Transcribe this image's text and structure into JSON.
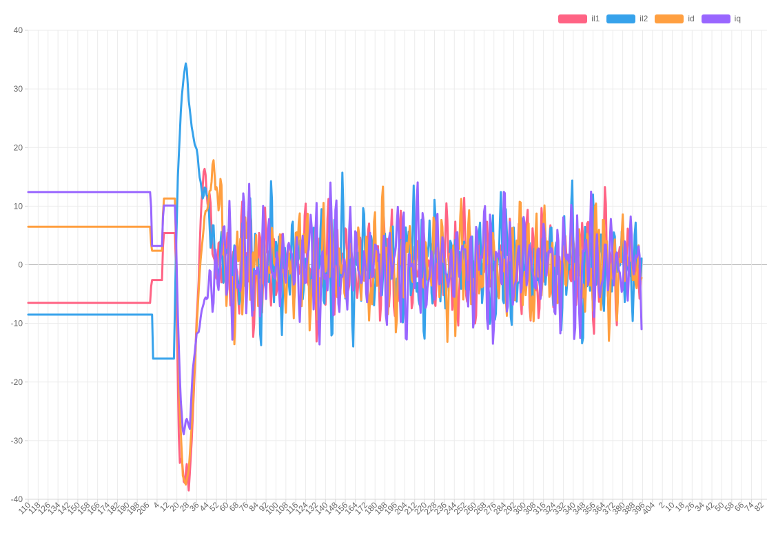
{
  "page": {
    "background": "#ffffff"
  },
  "chart_data": {
    "type": "line",
    "title": "",
    "legend_position": "top-right",
    "grid": true,
    "ylim": [
      -40,
      40
    ],
    "y_ticks": [
      40,
      30,
      20,
      10,
      0,
      -10,
      -20,
      -30,
      -40
    ],
    "x_tick_labels": [
      110,
      118,
      126,
      134,
      142,
      150,
      158,
      166,
      174,
      182,
      190,
      198,
      206,
      4,
      12,
      20,
      28,
      36,
      44,
      52,
      60,
      68,
      76,
      84,
      92,
      100,
      108,
      116,
      124,
      132,
      140,
      148,
      156,
      164,
      172,
      180,
      188,
      196,
      204,
      212,
      220,
      228,
      236,
      244,
      252,
      260,
      268,
      276,
      284,
      292,
      300,
      308,
      316,
      324,
      332,
      340,
      348,
      356,
      364,
      372,
      380,
      388,
      396,
      404,
      2,
      10,
      18,
      26,
      34,
      42,
      50,
      58,
      66,
      74,
      82
    ],
    "data_end_label_index": 62,
    "colors": {
      "grid": "#ebebeb",
      "zero_line": "#a9a9a9",
      "axis_line": "#d6d6d6",
      "tick_text": "#666666",
      "background": "#ffffff"
    },
    "series": [
      {
        "name": "il1",
        "color": "#FF6384",
        "initial_value": -6.5,
        "transient_min": -38.5,
        "keyframes": [
          [
            0,
            -6.5
          ],
          [
            12.35,
            -6.5
          ],
          [
            12.42,
            -2.6
          ],
          [
            13.55,
            -2.6
          ],
          [
            13.62,
            5.4
          ],
          [
            14.85,
            5.4
          ],
          [
            15.05,
            -15
          ],
          [
            15.25,
            -34
          ],
          [
            15.5,
            -33
          ],
          [
            15.75,
            -38
          ],
          [
            16.0,
            -34
          ],
          [
            16.2,
            -38.5
          ],
          [
            16.5,
            -30
          ],
          [
            16.9,
            -14
          ],
          [
            17.3,
            4
          ],
          [
            17.7,
            14.5
          ],
          [
            18.1,
            13
          ],
          [
            18.6,
            4
          ],
          [
            19.2,
            0
          ]
        ],
        "noise": {
          "amps": [
            6.2,
            5.0,
            3.6
          ],
          "freqs": [
            7.9,
            13.7,
            3.1
          ],
          "phases": [
            0.5,
            1.7,
            2.9
          ],
          "mod": [
            0.9,
            0.0
          ],
          "ramp": [
            16.6,
            19.2
          ]
        }
      },
      {
        "name": "il2",
        "color": "#36A2EB",
        "initial_value": -8.5,
        "transient_max": 34.8,
        "keyframes": [
          [
            0,
            -8.5
          ],
          [
            12.5,
            -8.5
          ],
          [
            12.58,
            -16
          ],
          [
            14.72,
            -16
          ],
          [
            14.85,
            -2
          ],
          [
            15.1,
            15
          ],
          [
            15.45,
            28
          ],
          [
            15.75,
            33
          ],
          [
            15.95,
            34.8
          ],
          [
            16.2,
            28
          ],
          [
            16.5,
            23.5
          ],
          [
            16.8,
            20.5
          ],
          [
            17.05,
            19.5
          ],
          [
            17.35,
            13.5
          ],
          [
            17.7,
            12
          ],
          [
            18.1,
            10.5
          ],
          [
            18.6,
            5
          ],
          [
            19.3,
            0
          ]
        ],
        "noise": {
          "amps": [
            7.0,
            5.2,
            3.8
          ],
          "freqs": [
            8.7,
            14.9,
            2.7
          ],
          "phases": [
            2.1,
            0.3,
            4.2
          ],
          "mod": [
            0.8,
            1.3
          ],
          "ramp": [
            17.2,
            19.5
          ]
        }
      },
      {
        "name": "id",
        "color": "#FF9F40",
        "initial_value": 6.5,
        "transient_min": -37.5,
        "keyframes": [
          [
            0,
            6.5
          ],
          [
            12.35,
            6.5
          ],
          [
            12.42,
            2.4
          ],
          [
            13.55,
            2.4
          ],
          [
            13.62,
            11.3
          ],
          [
            14.8,
            11.3
          ],
          [
            15.0,
            -3
          ],
          [
            15.3,
            -25
          ],
          [
            15.6,
            -36
          ],
          [
            15.9,
            -37.5
          ],
          [
            16.2,
            -35
          ],
          [
            16.55,
            -26
          ],
          [
            16.95,
            -12
          ],
          [
            17.35,
            0
          ],
          [
            17.8,
            8
          ],
          [
            18.3,
            13
          ],
          [
            18.8,
            16
          ],
          [
            19.3,
            9
          ],
          [
            19.9,
            0
          ]
        ],
        "noise": {
          "amps": [
            6.3,
            5.0,
            3.6
          ],
          "freqs": [
            7.3,
            15.8,
            2.3
          ],
          "phases": [
            4.0,
            2.2,
            1.1
          ],
          "mod": [
            0.85,
            2.6
          ],
          "ramp": [
            17.5,
            20.2
          ]
        }
      },
      {
        "name": "iq",
        "color": "#9966FF",
        "initial_value": 12.4,
        "transient_min": -29.5,
        "keyframes": [
          [
            0,
            12.4
          ],
          [
            12.38,
            12.4
          ],
          [
            12.45,
            3.2
          ],
          [
            13.55,
            3.2
          ],
          [
            13.62,
            10.1
          ],
          [
            14.85,
            10.1
          ],
          [
            15.05,
            -6
          ],
          [
            15.35,
            -22
          ],
          [
            15.65,
            -29.5
          ],
          [
            15.95,
            -26
          ],
          [
            16.3,
            -28
          ],
          [
            16.6,
            -18
          ],
          [
            17.0,
            -12
          ],
          [
            17.5,
            -9
          ],
          [
            18.0,
            -5
          ],
          [
            18.6,
            -2
          ],
          [
            19.2,
            0
          ]
        ],
        "noise": {
          "amps": [
            7.4,
            5.2,
            4.0
          ],
          "freqs": [
            9.3,
            12.9,
            2.9
          ],
          "phases": [
            1.2,
            3.3,
            0.7
          ],
          "mod": [
            0.75,
            4.1
          ],
          "ramp": [
            16.8,
            19.3
          ]
        }
      }
    ]
  }
}
